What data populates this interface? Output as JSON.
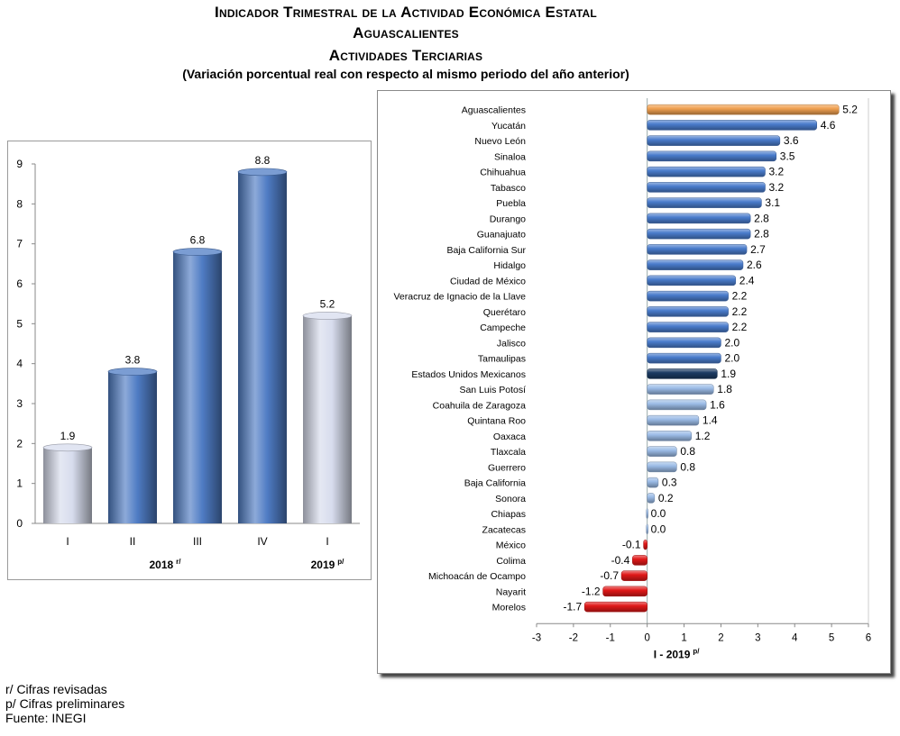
{
  "titles": {
    "line1": "Indicador Trimestral de la Actividad Económica Estatal",
    "line2": "Aguascalientes",
    "line3": "Actividades Terciarias",
    "line4": "(Variación porcentual real con respecto al mismo periodo del año anterior)"
  },
  "chart_data": [
    {
      "type": "bar",
      "categories": [
        "I",
        "II",
        "III",
        "IV",
        "I"
      ],
      "values": [
        1.9,
        3.8,
        6.8,
        8.8,
        5.2
      ],
      "value_labels": [
        "1.9",
        "3.8",
        "6.8",
        "8.8",
        "5.2"
      ],
      "groups": [
        {
          "label": "2018",
          "sup": "r/"
        },
        {
          "label": "2019",
          "sup": "p/"
        }
      ],
      "y_ticks": [
        "0",
        "1",
        "2",
        "3",
        "4",
        "5",
        "6",
        "7",
        "8",
        "9"
      ],
      "ylim": [
        0,
        9
      ],
      "grid": false,
      "colors": {
        "light": "#d7dced",
        "dark": "#4f7cc4"
      },
      "bar_styles": [
        "light",
        "dark",
        "dark",
        "dark",
        "light"
      ]
    },
    {
      "type": "bar",
      "orientation": "horizontal",
      "xlabel": "I - 2019",
      "xlabel_sup": "p/",
      "x_ticks": [
        "-3",
        "-2",
        "-1",
        "0",
        "1",
        "2",
        "3",
        "4",
        "5",
        "6"
      ],
      "xlim": [
        -3,
        6
      ],
      "grid": false,
      "categories": [
        "Aguascalientes",
        "Yucatán",
        "Nuevo León",
        "Sinaloa",
        "Chihuahua",
        "Tabasco",
        "Puebla",
        "Durango",
        "Guanajuato",
        "Baja California Sur",
        "Hidalgo",
        "Ciudad de México",
        "Veracruz de Ignacio de la Llave",
        "Querétaro",
        "Campeche",
        "Jalisco",
        "Tamaulipas",
        "Estados Unidos Mexicanos",
        "San Luis Potosí",
        "Coahuila de Zaragoza",
        "Quintana Roo",
        "Oaxaca",
        "Tlaxcala",
        "Guerrero",
        "Baja California",
        "Sonora",
        "Chiapas",
        "Zacatecas",
        "México",
        "Colima",
        "Michoacán de Ocampo",
        "Nayarit",
        "Morelos"
      ],
      "values": [
        5.2,
        4.6,
        3.6,
        3.5,
        3.2,
        3.2,
        3.1,
        2.8,
        2.8,
        2.7,
        2.6,
        2.4,
        2.2,
        2.2,
        2.2,
        2.0,
        2.0,
        1.9,
        1.8,
        1.6,
        1.4,
        1.2,
        0.8,
        0.8,
        0.3,
        0.2,
        0.0,
        0.0,
        -0.1,
        -0.4,
        -0.7,
        -1.2,
        -1.7
      ],
      "value_labels": [
        "5.2",
        "4.6",
        "3.6",
        "3.5",
        "3.2",
        "3.2",
        "3.1",
        "2.8",
        "2.8",
        "2.7",
        "2.6",
        "2.4",
        "2.2",
        "2.2",
        "2.2",
        "2.0",
        "2.0",
        "1.9",
        "1.8",
        "1.6",
        "1.4",
        "1.2",
        "0.8",
        "0.8",
        "0.3",
        "0.2",
        "0.0",
        "0.0",
        "-0.1",
        "-0.4",
        "-0.7",
        "-1.2",
        "-1.7"
      ],
      "colors": {
        "highlight": "#f0a050",
        "above": "#4a7ccc",
        "national": "#1b3a63",
        "below": "#9bbbe6",
        "negative": "#e01818"
      }
    }
  ],
  "notes": [
    "r/ Cifras revisadas",
    "p/ Cifras preliminares",
    "Fuente: INEGI"
  ]
}
